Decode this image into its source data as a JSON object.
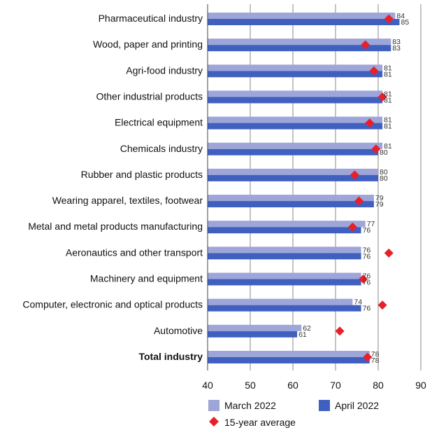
{
  "chart_data": {
    "type": "bar",
    "orientation": "horizontal",
    "categories": [
      "Pharmaceutical industry",
      "Wood, paper and printing",
      "Agri-food industry",
      "Other industrial products",
      "Electrical equipment",
      "Chemicals industry",
      "Rubber and plastic products",
      "Wearing apparel, textiles, footwear",
      "Metal and metal products manufacturing",
      "Aeronautics and other transport",
      "Machinery and equipment",
      "Computer, electronic and optical products",
      "Automotive",
      "Total industry"
    ],
    "bold_categories": [
      "Total industry"
    ],
    "series": [
      {
        "name": "March 2022",
        "color": "#9ea5d8",
        "values": [
          84,
          83,
          81,
          81,
          81,
          81,
          80,
          79,
          77,
          76,
          76,
          74,
          62,
          78
        ],
        "labels": [
          "84",
          "83",
          "81",
          "81",
          "81",
          "81",
          "80",
          "79",
          "77",
          "76",
          "76",
          "74",
          "62",
          "78"
        ]
      },
      {
        "name": "April 2022",
        "color": "#4060c0",
        "values": [
          85,
          83,
          81,
          81,
          81,
          80,
          80,
          79,
          76,
          76,
          76,
          76,
          61,
          78
        ],
        "labels": [
          "85",
          "83",
          "81",
          "81",
          "81",
          "80",
          "80",
          "79",
          "76",
          "76",
          "76",
          "76",
          "61",
          "78"
        ]
      }
    ],
    "markers": {
      "name": "15-year average",
      "color": "#e8202a",
      "shape": "diamond",
      "values": [
        82.5,
        77,
        79,
        81,
        78,
        79.5,
        74.5,
        75.5,
        74,
        82.5,
        76.5,
        81,
        71,
        77.5
      ]
    },
    "x_ticks": [
      40,
      50,
      60,
      70,
      80,
      90
    ],
    "tick_labels": [
      "40",
      "50",
      "60",
      "70",
      "80",
      "90"
    ],
    "xlim": [
      40,
      90
    ],
    "grid": "vertical",
    "legend_position": "bottom"
  }
}
